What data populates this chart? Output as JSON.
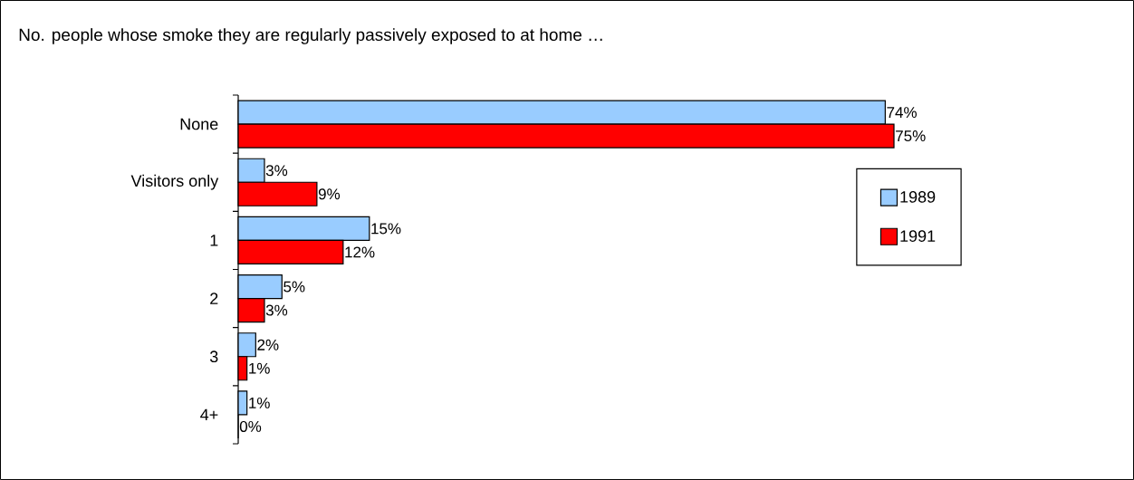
{
  "chart_data": {
    "type": "bar",
    "orientation": "horizontal",
    "title": "No. people whose smoke they are regularly passively exposed to at home …",
    "categories": [
      "None",
      "Visitors only",
      "1",
      "2",
      "3",
      "4+"
    ],
    "series": [
      {
        "name": "1989",
        "color": "#99ccff",
        "values": [
          74,
          3,
          15,
          5,
          2,
          1
        ],
        "value_labels": [
          "74%",
          "3%",
          "15%",
          "5%",
          "2%",
          "1%"
        ]
      },
      {
        "name": "1991",
        "color": "#ff0000",
        "values": [
          75,
          9,
          12,
          3,
          1,
          0
        ],
        "value_labels": [
          "75%",
          "9%",
          "12%",
          "3%",
          "1%",
          "0%"
        ]
      }
    ],
    "legend": "right"
  }
}
